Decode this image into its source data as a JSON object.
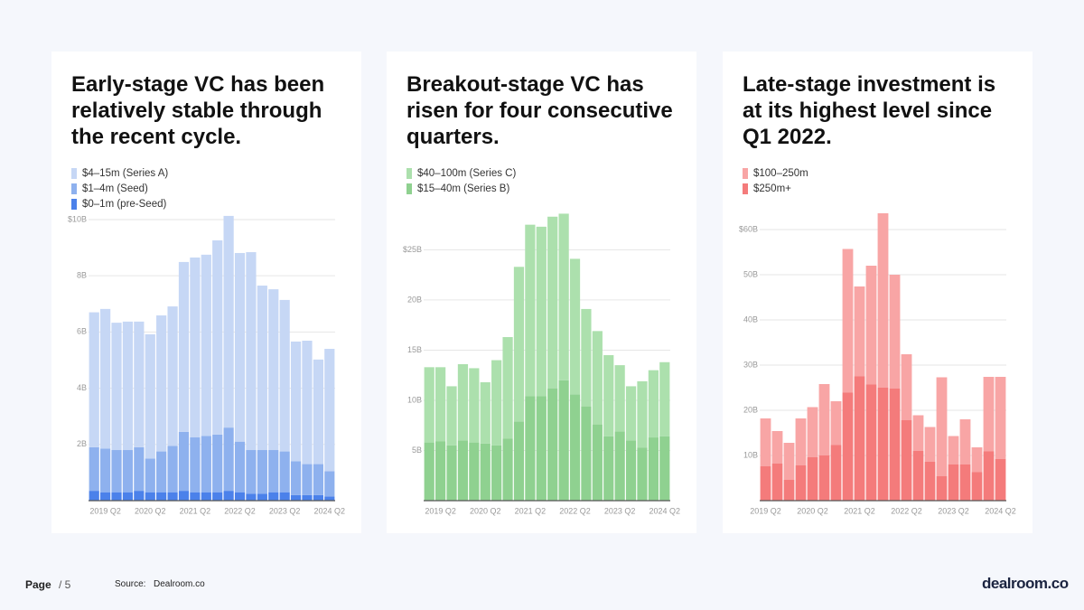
{
  "chart_data": [
    {
      "type": "stacked-bar",
      "title": "Early-stage VC has been relatively stable through the recent cycle.",
      "categories": [
        null,
        "2019 Q2",
        null,
        null,
        null,
        "2020 Q2",
        null,
        null,
        null,
        "2021 Q2",
        null,
        null,
        null,
        "2022 Q2",
        null,
        null,
        null,
        "2023 Q2",
        null,
        null,
        null,
        "2024 Q2"
      ],
      "series": [
        {
          "name": "$4–15m (Series A)",
          "color": "#c6d7f5",
          "values": [
            4.8,
            4.97,
            4.53,
            4.57,
            4.47,
            4.42,
            4.84,
            4.96,
            6.04,
            6.4,
            6.45,
            6.91,
            7.53,
            6.71,
            7.04,
            5.85,
            5.72,
            5.39,
            4.26,
            4.39,
            3.72,
            4.35
          ]
        },
        {
          "name": "$1–4m (Seed)",
          "color": "#8eb1ee",
          "values": [
            1.55,
            1.55,
            1.5,
            1.5,
            1.55,
            1.2,
            1.45,
            1.65,
            2.1,
            1.95,
            2.0,
            2.05,
            2.25,
            1.8,
            1.55,
            1.55,
            1.5,
            1.45,
            1.2,
            1.1,
            1.1,
            0.9
          ]
        },
        {
          "name": "$0–1m (pre-Seed)",
          "color": "#4b81ea",
          "values": [
            0.35,
            0.3,
            0.3,
            0.3,
            0.35,
            0.3,
            0.3,
            0.3,
            0.35,
            0.3,
            0.3,
            0.3,
            0.35,
            0.3,
            0.25,
            0.25,
            0.3,
            0.3,
            0.2,
            0.2,
            0.2,
            0.15
          ]
        }
      ],
      "ylim": [
        0,
        10.5
      ],
      "yticks": [
        {
          "value": 10,
          "label": "$10B"
        },
        {
          "value": 8,
          "label": "8B"
        },
        {
          "value": 6,
          "label": "6B"
        },
        {
          "value": 4,
          "label": "4B"
        },
        {
          "value": 2,
          "label": "2B"
        }
      ],
      "grid": true
    },
    {
      "type": "stacked-bar",
      "title": "Breakout-stage VC has risen for four consecutive quarters.",
      "categories": [
        null,
        "2019 Q2",
        null,
        null,
        null,
        "2020 Q2",
        null,
        null,
        null,
        "2021 Q2",
        null,
        null,
        null,
        "2022 Q2",
        null,
        null,
        null,
        "2023 Q2",
        null,
        null,
        null,
        "2024 Q2"
      ],
      "series": [
        {
          "name": "$40–100m (Series C)",
          "color": "#ace0ad",
          "values": [
            7.5,
            7.4,
            5.9,
            7.6,
            7.4,
            6.1,
            8.5,
            10.1,
            15.4,
            17.1,
            16.9,
            17.1,
            16.6,
            13.5,
            9.7,
            9.3,
            8.1,
            6.6,
            5.4,
            6.6,
            6.7,
            7.4
          ]
        },
        {
          "name": "$15–40m (Series B)",
          "color": "#8fd190",
          "values": [
            5.8,
            5.9,
            5.5,
            6.0,
            5.8,
            5.7,
            5.5,
            6.2,
            7.9,
            10.4,
            10.4,
            11.2,
            12.0,
            10.6,
            9.4,
            7.6,
            6.4,
            6.9,
            6.0,
            5.3,
            6.3,
            6.4
          ]
        }
      ],
      "ylim": [
        0,
        29
      ],
      "yticks": [
        {
          "value": 25,
          "label": "$25B"
        },
        {
          "value": 20,
          "label": "20B"
        },
        {
          "value": 15,
          "label": "15B"
        },
        {
          "value": 10,
          "label": "10B"
        },
        {
          "value": 5,
          "label": "5B"
        }
      ],
      "grid": true
    },
    {
      "type": "stacked-bar",
      "title": "Late-stage investment is at its highest level since Q1 2022.",
      "categories": [
        "2019 Q2",
        null,
        null,
        null,
        "2020 Q2",
        null,
        null,
        null,
        "2021 Q2",
        null,
        null,
        null,
        "2022 Q2",
        null,
        null,
        null,
        "2023 Q2",
        null,
        null,
        null,
        "2024 Q2"
      ],
      "series": [
        {
          "name": "$100–250m",
          "color": "#f8a5a5",
          "values": [
            10.6,
            7.2,
            8.2,
            10.4,
            11.1,
            15.8,
            9.7,
            31.8,
            19.9,
            26.3,
            38.6,
            25.2,
            14.6,
            7.9,
            7.7,
            21.9,
            6.3,
            10.0,
            5.5,
            16.5,
            18.2
          ]
        },
        {
          "name": "$250m+",
          "color": "#f47b7b",
          "values": [
            7.6,
            8.2,
            4.6,
            7.8,
            9.6,
            10.0,
            12.3,
            23.9,
            27.5,
            25.7,
            25.0,
            24.8,
            17.8,
            11.0,
            8.6,
            5.4,
            8.0,
            8.0,
            6.3,
            10.9,
            9.2
          ]
        }
      ],
      "ylim": [
        0,
        64
      ],
      "yticks": [
        {
          "value": 60,
          "label": "$60B"
        },
        {
          "value": 50,
          "label": "50B"
        },
        {
          "value": 40,
          "label": "40B"
        },
        {
          "value": 30,
          "label": "30B"
        },
        {
          "value": 20,
          "label": "20B"
        },
        {
          "value": 10,
          "label": "10B"
        }
      ],
      "grid": true
    }
  ],
  "footer": {
    "page": "Page",
    "page_number": "/ 5",
    "source_label": "Source:",
    "source": "Dealroom.co",
    "logo": "dealroom.co"
  }
}
